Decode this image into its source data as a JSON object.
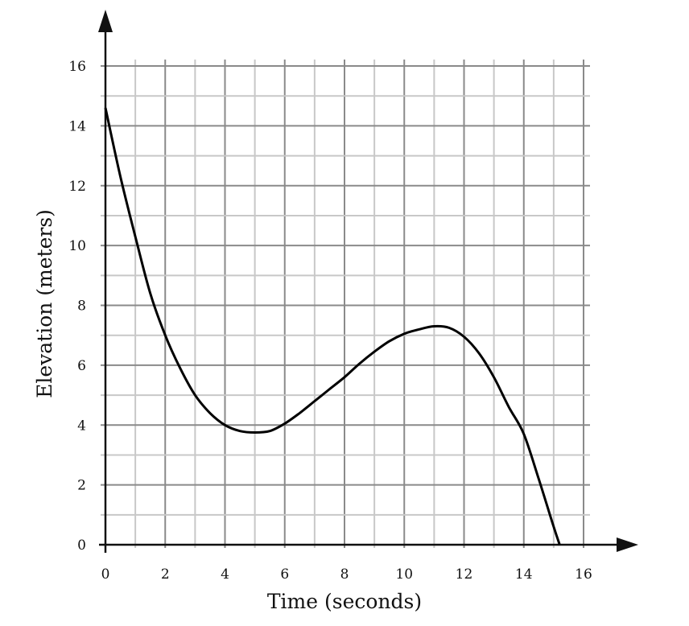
{
  "chart_data": {
    "type": "line",
    "xlabel": "Time (seconds)",
    "ylabel": "Elevation (meters)",
    "xlim": [
      0,
      16
    ],
    "ylim": [
      0,
      16
    ],
    "x_ticks": [
      "0",
      "2",
      "4",
      "6",
      "8",
      "10",
      "12",
      "14",
      "16"
    ],
    "y_ticks": [
      "0",
      "2",
      "4",
      "6",
      "8",
      "10",
      "12",
      "14",
      "16"
    ],
    "grid": {
      "major": 2,
      "minor": 1,
      "on": true
    },
    "colors": {
      "major_grid": "#8a8a8a",
      "minor_grid": "#c8c8c8",
      "axis": "#111111",
      "line": "#000000"
    },
    "series": [
      {
        "x": [
          0,
          0.5,
          1,
          1.5,
          2,
          2.5,
          3,
          3.5,
          4,
          4.5,
          5,
          5.5,
          6,
          6.5,
          7,
          7.5,
          8,
          8.5,
          9,
          9.5,
          10,
          10.5,
          11,
          11.5,
          12,
          12.5,
          13,
          13.5,
          14,
          14.5,
          15,
          15.2
        ],
        "y": [
          14.6,
          12.3,
          10.3,
          8.4,
          7.0,
          5.9,
          5.0,
          4.4,
          4.0,
          3.8,
          3.75,
          3.8,
          4.05,
          4.4,
          4.8,
          5.2,
          5.6,
          6.05,
          6.45,
          6.8,
          7.05,
          7.2,
          7.3,
          7.25,
          6.95,
          6.4,
          5.6,
          4.6,
          3.7,
          2.2,
          0.6,
          0.0
        ]
      }
    ]
  }
}
